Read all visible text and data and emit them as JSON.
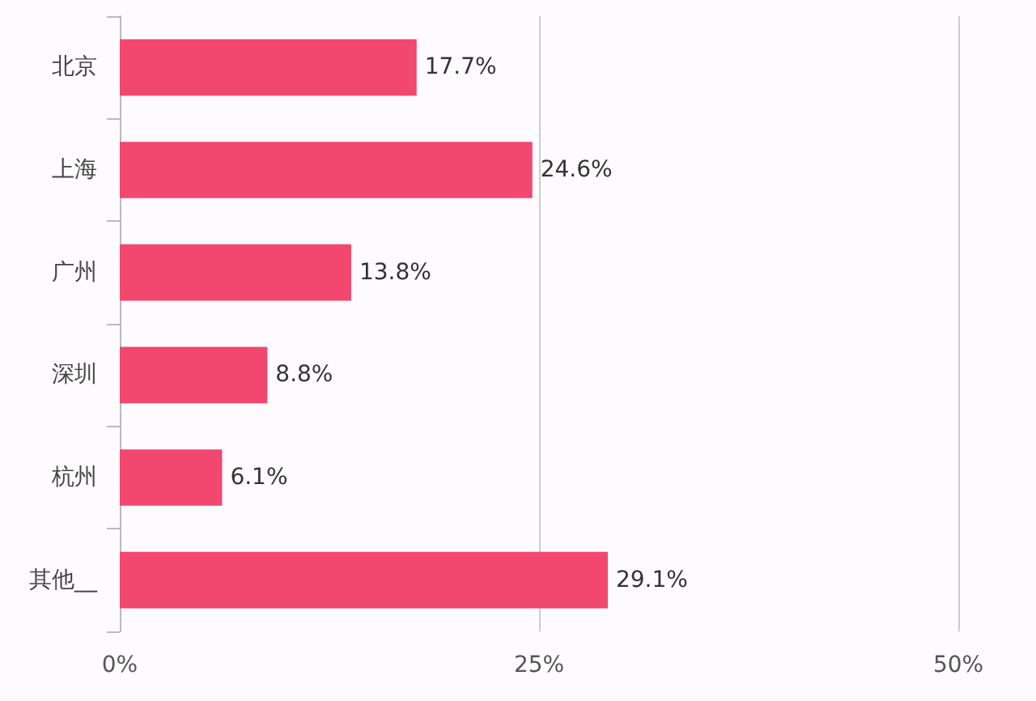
{
  "chart_data": {
    "type": "bar",
    "orientation": "horizontal",
    "categories": [
      "北京",
      "上海",
      "广州",
      "深圳",
      "杭州",
      "其他__"
    ],
    "values": [
      17.7,
      24.6,
      13.8,
      8.8,
      6.1,
      29.1
    ],
    "value_labels": [
      "17.7%",
      "24.6%",
      "13.8%",
      "8.8%",
      "6.1%",
      "29.1%"
    ],
    "color": "#f2476f",
    "xlim": [
      0,
      50
    ],
    "xticks": [
      {
        "value": 0,
        "label": "0%"
      },
      {
        "value": 25,
        "label": "25%"
      },
      {
        "value": 50,
        "label": "50%"
      }
    ],
    "grid": "x"
  }
}
